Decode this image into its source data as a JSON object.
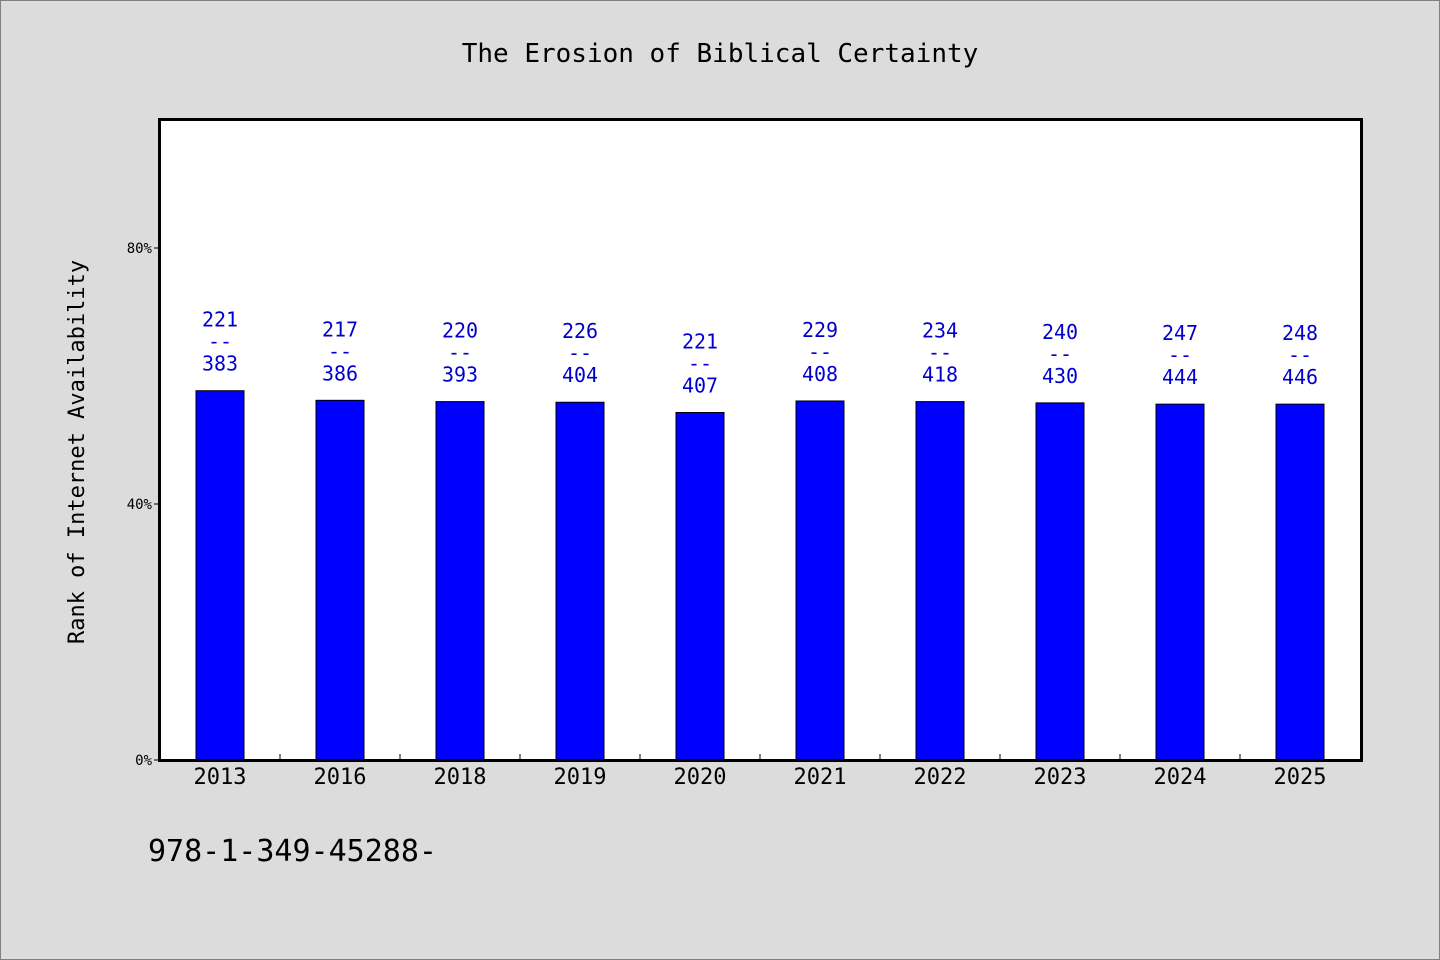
{
  "chart_data": {
    "type": "bar",
    "title": "The Erosion of Biblical Certainty",
    "ylabel": "Rank of Internet Availability",
    "xlabel": "",
    "categories": [
      "2013",
      "2016",
      "2018",
      "2019",
      "2020",
      "2021",
      "2022",
      "2023",
      "2024",
      "2025"
    ],
    "values": [
      57.7,
      56.2,
      56.0,
      55.9,
      54.3,
      56.1,
      56.0,
      55.8,
      55.6,
      55.6
    ],
    "value_unit": "%",
    "data_labels": [
      {
        "top": "221",
        "sep": "--",
        "bottom": "383"
      },
      {
        "top": "217",
        "sep": "--",
        "bottom": "386"
      },
      {
        "top": "220",
        "sep": "--",
        "bottom": "393"
      },
      {
        "top": "226",
        "sep": "--",
        "bottom": "404"
      },
      {
        "top": "221",
        "sep": "--",
        "bottom": "407"
      },
      {
        "top": "229",
        "sep": "--",
        "bottom": "408"
      },
      {
        "top": "234",
        "sep": "--",
        "bottom": "418"
      },
      {
        "top": "240",
        "sep": "--",
        "bottom": "430"
      },
      {
        "top": "247",
        "sep": "--",
        "bottom": "444"
      },
      {
        "top": "248",
        "sep": "--",
        "bottom": "446"
      }
    ],
    "ylim": [
      0,
      100
    ],
    "yticks": [
      0,
      40,
      80
    ],
    "ytick_labels": [
      "0%",
      "40%",
      "80%"
    ],
    "grid": false,
    "legend": "none",
    "colors": {
      "bar": "#0000ff",
      "label": "#0000cc",
      "background": "#dcdcdc",
      "plot_background": "#ffffff"
    }
  },
  "footnote": "978-1-349-45288-"
}
